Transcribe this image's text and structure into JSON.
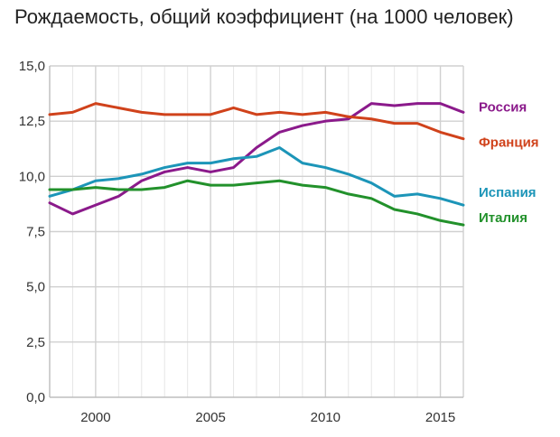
{
  "chart_data": {
    "type": "line",
    "title": "Рождаемость, общий коэффициент (на 1000 человек)",
    "xlabel": "",
    "ylabel": "",
    "x": [
      1998,
      1999,
      2000,
      2001,
      2002,
      2003,
      2004,
      2005,
      2006,
      2007,
      2008,
      2009,
      2010,
      2011,
      2012,
      2013,
      2014,
      2015,
      2016
    ],
    "xlim": [
      1998,
      2016
    ],
    "ylim": [
      0,
      15
    ],
    "x_ticks": [
      2000,
      2005,
      2010,
      2015
    ],
    "x_tick_labels": [
      "2000",
      "2005",
      "2010",
      "2015"
    ],
    "y_ticks": [
      0,
      2.5,
      5,
      7.5,
      10,
      12.5,
      15
    ],
    "y_tick_labels": [
      "0,0",
      "2,5",
      "5,0",
      "7,5",
      "10,0",
      "12,5",
      "15,0"
    ],
    "grid": true,
    "legend": "inline labels at right end of lines",
    "series": [
      {
        "name": "Россия",
        "color": "#8b1a8b",
        "values": [
          8.8,
          8.3,
          8.7,
          9.1,
          9.8,
          10.2,
          10.4,
          10.2,
          10.4,
          11.3,
          12.0,
          12.3,
          12.5,
          12.6,
          13.3,
          13.2,
          13.3,
          13.3,
          12.9
        ]
      },
      {
        "name": "Франция",
        "color": "#d0421b",
        "values": [
          12.8,
          12.9,
          13.3,
          13.1,
          12.9,
          12.8,
          12.8,
          12.8,
          13.1,
          12.8,
          12.9,
          12.8,
          12.9,
          12.7,
          12.6,
          12.4,
          12.4,
          12.0,
          11.7
        ]
      },
      {
        "name": "Испания",
        "color": "#1c95b8",
        "values": [
          9.1,
          9.4,
          9.8,
          9.9,
          10.1,
          10.4,
          10.6,
          10.6,
          10.8,
          10.9,
          11.3,
          10.6,
          10.4,
          10.1,
          9.7,
          9.1,
          9.2,
          9.0,
          8.7
        ]
      },
      {
        "name": "Италия",
        "color": "#22912b",
        "values": [
          9.4,
          9.4,
          9.5,
          9.4,
          9.4,
          9.5,
          9.8,
          9.6,
          9.6,
          9.7,
          9.8,
          9.6,
          9.5,
          9.2,
          9.0,
          8.5,
          8.3,
          8.0,
          7.8
        ]
      }
    ]
  }
}
